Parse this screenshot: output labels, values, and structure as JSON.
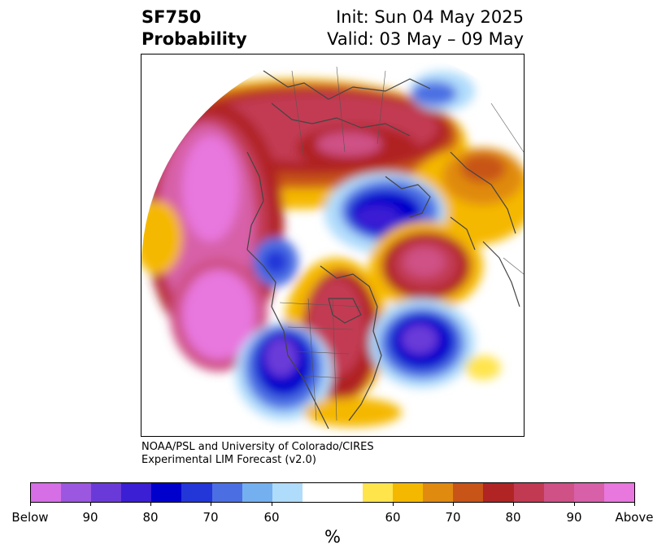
{
  "title": {
    "field": "SF750",
    "subtitle": "Probability",
    "init": "Init: Sun 04 May 2025",
    "valid": "Valid: 03 May – 09 May"
  },
  "credit": {
    "line1": "NOAA/PSL and University of Colorado/CIRES",
    "line2": "Experimental LIM Forecast (v2.0)"
  },
  "colorbar": {
    "colors": [
      "#d66ee6",
      "#9b57e0",
      "#6a3ad8",
      "#3a1fd4",
      "#0000cc",
      "#2336d8",
      "#4b6fe3",
      "#74b0f0",
      "#b0dcfb",
      "#ffffff",
      "#ffe44c",
      "#f5b800",
      "#e08a0f",
      "#c85418",
      "#b02424",
      "#c23a52",
      "#cf5186",
      "#d760a8",
      "#e877de"
    ],
    "tick_labels": [
      "Below",
      "90",
      "80",
      "70",
      "60",
      "60",
      "70",
      "80",
      "90",
      "Above"
    ],
    "unit": "%"
  },
  "map": {
    "projection": "polar stereographic (North Pole)",
    "features": [
      "coastlines",
      "country borders",
      "US state lines",
      "Canadian provinces"
    ],
    "anomalies": [
      {
        "name": "north-pacific-high",
        "sign": "above",
        "peak": "Above"
      },
      {
        "name": "east-pacific-high",
        "sign": "above",
        "peak": "Above"
      },
      {
        "name": "siberia-high",
        "sign": "above",
        "peak": "Above"
      },
      {
        "name": "central-north-america-high",
        "sign": "above",
        "peak": "90"
      },
      {
        "name": "north-atlantic-high",
        "sign": "above",
        "peak": "Above"
      },
      {
        "name": "europe-high",
        "sign": "above",
        "peak": "80"
      },
      {
        "name": "arctic-low",
        "sign": "below",
        "peak": "90"
      },
      {
        "name": "southwest-us-low",
        "sign": "below",
        "peak": "90"
      },
      {
        "name": "western-atlantic-low",
        "sign": "below",
        "peak": "90"
      },
      {
        "name": "alaska-low",
        "sign": "below",
        "peak": "70"
      }
    ]
  }
}
